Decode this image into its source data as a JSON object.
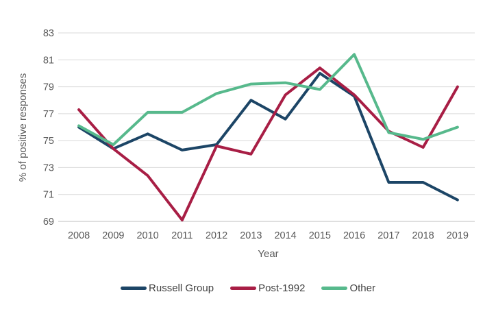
{
  "chart_data": {
    "type": "line",
    "title": "",
    "categories": [
      "2008",
      "2009",
      "2010",
      "2011",
      "2012",
      "2013",
      "2014",
      "2015",
      "2016",
      "2017",
      "2018",
      "2019"
    ],
    "series": [
      {
        "name": "Russell Group",
        "color": "#1C4566",
        "values": [
          76.0,
          74.4,
          75.5,
          74.3,
          74.7,
          78.0,
          76.6,
          80.0,
          78.3,
          71.9,
          71.9,
          70.6
        ]
      },
      {
        "name": "Post-1992",
        "color": "#A81E45",
        "values": [
          77.3,
          74.4,
          72.4,
          69.1,
          74.6,
          74.0,
          78.4,
          80.4,
          78.4,
          75.7,
          74.5,
          79.0
        ]
      },
      {
        "name": "Other",
        "color": "#57B98C",
        "values": [
          76.1,
          74.7,
          77.1,
          77.1,
          78.5,
          79.2,
          79.3,
          78.8,
          81.4,
          75.6,
          75.1,
          76.0
        ]
      }
    ],
    "xlabel": "Year",
    "ylabel": "% of positive responses",
    "ylim": [
      69,
      83
    ],
    "yticks": [
      69,
      71,
      73,
      75,
      77,
      79,
      81,
      83
    ],
    "grid": "horizontal",
    "legend_position": "bottom"
  },
  "colors": {
    "background": "#FFFFFF",
    "gridline": "#D9D9D9",
    "axis_line": "#BFBFBF",
    "tick_text": "#595959",
    "axis_title_text": "#595959",
    "legend_text": "#404040"
  }
}
